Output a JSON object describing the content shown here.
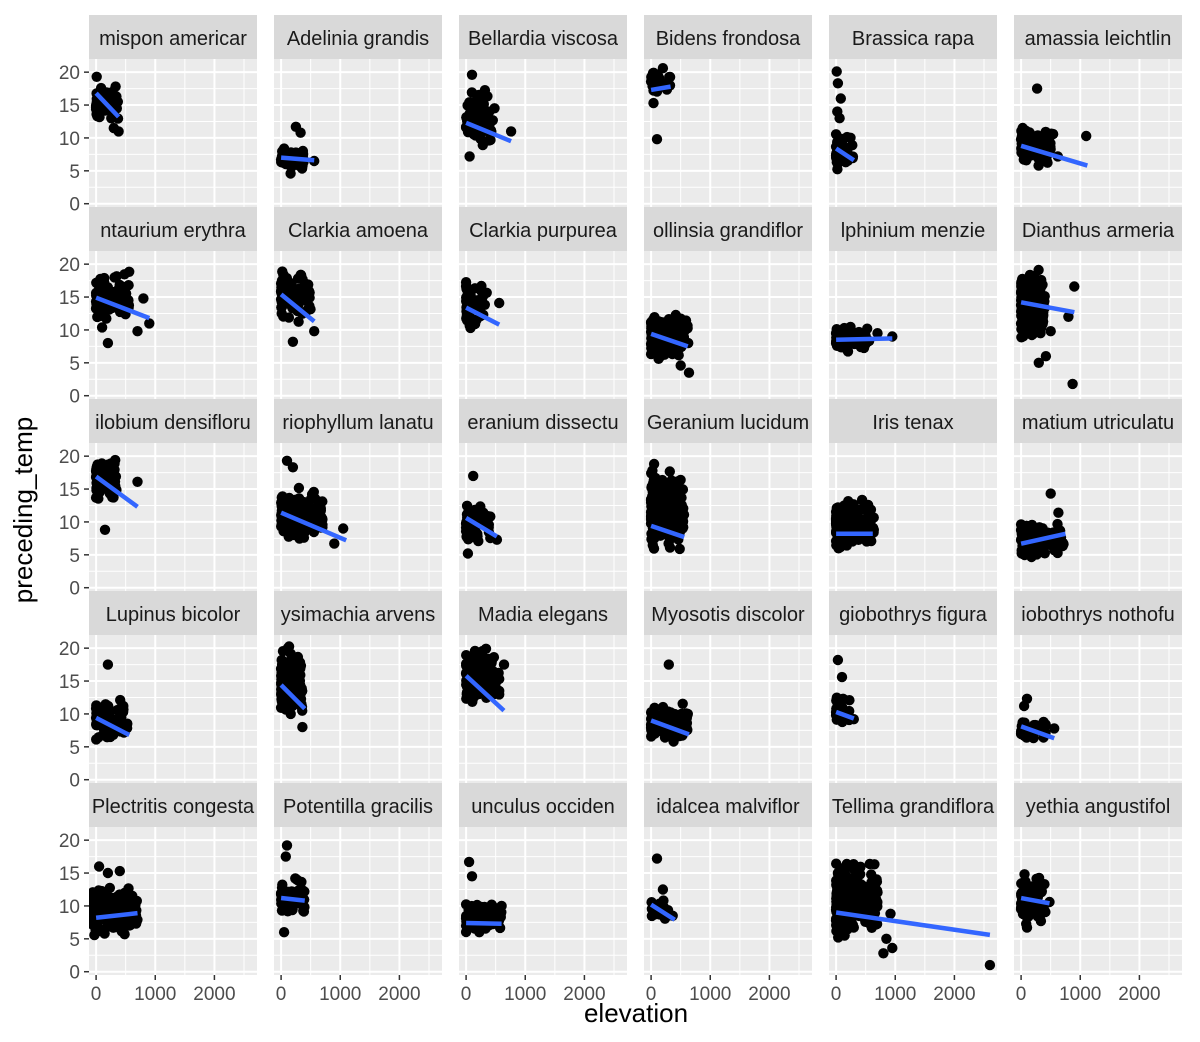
{
  "chart_data": {
    "type": "scatter",
    "xlabel": "elevation",
    "ylabel": "preceding_temp",
    "xlim": [
      -120,
      2720
    ],
    "ylim": [
      -0.5,
      22
    ],
    "x_ticks": [
      0,
      1000,
      2000
    ],
    "x_tick_labels": [
      "0",
      "1000",
      "2000"
    ],
    "y_ticks": [
      0,
      5,
      10,
      15,
      20
    ],
    "y_tick_labels": [
      "0",
      "5",
      "10",
      "15",
      "20"
    ],
    "grid": true,
    "legend": "none",
    "colors": {
      "panel_bg": "#EBEBEB",
      "strip_bg": "#D9D9D9",
      "grid": "#FFFFFF",
      "point": "#000000",
      "fit_line": "#3366FF",
      "axis_text": "#4D4D4D"
    },
    "facets": [
      {
        "label": "mispon americar",
        "fit": [
          0,
          16.8,
          380,
          13.2
        ],
        "points": {
          "xmin": 0,
          "xmax": 370,
          "ymin": 11,
          "ymax": 19.5,
          "n": 45,
          "extra": [
            [
              10,
              19.3
            ],
            [
              380,
              11
            ],
            [
              330,
              17.8
            ],
            [
              300,
              11.5
            ],
            [
              20,
              13.3
            ]
          ]
        }
      },
      {
        "label": "Adelinia grandis",
        "fit": [
          0,
          7.0,
          560,
          6.6
        ],
        "points": {
          "xmin": 0,
          "xmax": 400,
          "ymin": 4.8,
          "ymax": 9,
          "n": 55,
          "extra": [
            [
              250,
              11.7
            ],
            [
              330,
              10.8
            ],
            [
              560,
              6.5
            ],
            [
              160,
              4.6
            ]
          ]
        }
      },
      {
        "label": "Bellardia viscosa",
        "fit": [
          0,
          12.3,
          760,
          9.5
        ],
        "points": {
          "xmin": 0,
          "xmax": 460,
          "ymin": 7.5,
          "ymax": 18,
          "n": 95,
          "extra": [
            [
              100,
              19.6
            ],
            [
              760,
              11
            ],
            [
              480,
              14.5
            ],
            [
              60,
              7.2
            ]
          ]
        }
      },
      {
        "label": "Bidens frondosa",
        "fit": [
          0,
          17.3,
          330,
          17.8
        ],
        "points": {
          "xmin": 0,
          "xmax": 330,
          "ymin": 16.5,
          "ymax": 20.5,
          "n": 30,
          "extra": [
            [
              100,
              9.8
            ],
            [
              40,
              15.3
            ],
            [
              200,
              20.6
            ]
          ]
        }
      },
      {
        "label": "Brassica rapa",
        "fit": [
          0,
          8.4,
          300,
          6.6
        ],
        "points": {
          "xmin": 0,
          "xmax": 300,
          "ymin": 4.5,
          "ymax": 12,
          "n": 45,
          "extra": [
            [
              10,
              20.1
            ],
            [
              30,
              18.3
            ],
            [
              80,
              16
            ],
            [
              20,
              14
            ],
            [
              60,
              13
            ]
          ]
        }
      },
      {
        "label": "amassia leichtlin",
        "fit": [
          0,
          8.8,
          1120,
          5.8
        ],
        "points": {
          "xmin": 0,
          "xmax": 560,
          "ymin": 4.8,
          "ymax": 13,
          "n": 95,
          "extra": [
            [
              270,
              17.5
            ],
            [
              1100,
              10.3
            ],
            [
              620,
              7.2
            ]
          ]
        }
      },
      {
        "label": "ntaurium erythra",
        "fit": [
          0,
          14.9,
          900,
          11.8
        ],
        "points": {
          "xmin": 0,
          "xmax": 560,
          "ymin": 10,
          "ymax": 19.5,
          "n": 115,
          "extra": [
            [
              900,
              11
            ],
            [
              800,
              14.8
            ],
            [
              700,
              9.8
            ],
            [
              200,
              8
            ],
            [
              550,
              16.8
            ]
          ]
        }
      },
      {
        "label": "Clarkia amoena",
        "fit": [
          0,
          15.4,
          560,
          11.3
        ],
        "points": {
          "xmin": 0,
          "xmax": 500,
          "ymin": 10.5,
          "ymax": 20.3,
          "n": 95,
          "extra": [
            [
              560,
              9.8
            ],
            [
              200,
              8.2
            ]
          ]
        }
      },
      {
        "label": "Clarkia purpurea",
        "fit": [
          0,
          13.4,
          560,
          10.8
        ],
        "points": {
          "xmin": 0,
          "xmax": 350,
          "ymin": 8,
          "ymax": 19.5,
          "n": 55,
          "extra": [
            [
              560,
              14.1
            ]
          ]
        }
      },
      {
        "label": "ollinsia grandiflor",
        "fit": [
          0,
          9.4,
          620,
          7.5
        ],
        "points": {
          "xmin": 0,
          "xmax": 640,
          "ymin": 5,
          "ymax": 13.5,
          "n": 125,
          "extra": [
            [
              640,
              3.5
            ],
            [
              500,
              4.6
            ]
          ]
        }
      },
      {
        "label": "lphinium menzie",
        "fit": [
          0,
          8.5,
          950,
          8.7
        ],
        "points": {
          "xmin": 0,
          "xmax": 560,
          "ymin": 6.5,
          "ymax": 11,
          "n": 85,
          "extra": [
            [
              950,
              9
            ],
            [
              700,
              9.5
            ]
          ]
        }
      },
      {
        "label": "Dianthus armeria",
        "fit": [
          0,
          14.2,
          900,
          12.7
        ],
        "points": {
          "xmin": 0,
          "xmax": 400,
          "ymin": 7,
          "ymax": 20.2,
          "n": 155,
          "extra": [
            [
              900,
              16.6
            ],
            [
              870,
              1.8
            ],
            [
              300,
              5
            ],
            [
              420,
              6
            ],
            [
              500,
              9.8
            ],
            [
              800,
              12
            ]
          ]
        }
      },
      {
        "label": "ilobium densifloru",
        "fit": [
          0,
          16.9,
          700,
          12.3
        ],
        "points": {
          "xmin": 0,
          "xmax": 360,
          "ymin": 12.3,
          "ymax": 20.7,
          "n": 75,
          "extra": [
            [
              700,
              16.1
            ],
            [
              150,
              8.8
            ]
          ]
        }
      },
      {
        "label": "riophyllum lanatu",
        "fit": [
          0,
          11.4,
          1100,
          7.2
        ],
        "points": {
          "xmin": 0,
          "xmax": 700,
          "ymin": 6,
          "ymax": 16,
          "n": 165,
          "extra": [
            [
              1050,
              9
            ],
            [
              100,
              19.3
            ],
            [
              200,
              18.3
            ],
            [
              900,
              6.7
            ]
          ]
        }
      },
      {
        "label": "eranium dissectu",
        "fit": [
          0,
          10.6,
          520,
          7.8
        ],
        "points": {
          "xmin": 0,
          "xmax": 420,
          "ymin": 6,
          "ymax": 14,
          "n": 55,
          "extra": [
            [
              120,
              17
            ],
            [
              520,
              7.3
            ],
            [
              30,
              5.2
            ]
          ]
        }
      },
      {
        "label": "Geranium lucidum",
        "fit": [
          0,
          9.4,
          560,
          7.7
        ],
        "points": {
          "xmin": 0,
          "xmax": 560,
          "ymin": 4.8,
          "ymax": 19,
          "n": 260,
          "extra": [
            [
              50,
              18.8
            ]
          ]
        }
      },
      {
        "label": "Iris tenax",
        "fit": [
          0,
          8.2,
          620,
          8.2
        ],
        "points": {
          "xmin": 0,
          "xmax": 640,
          "ymin": 5.5,
          "ymax": 13.8,
          "n": 190,
          "extra": []
        }
      },
      {
        "label": "matium utriculatu",
        "fit": [
          0,
          6.7,
          750,
          8.2
        ],
        "points": {
          "xmin": 0,
          "xmax": 720,
          "ymin": 4,
          "ymax": 10.5,
          "n": 105,
          "extra": [
            [
              500,
              14.3
            ],
            [
              630,
              11.4
            ]
          ]
        }
      },
      {
        "label": "Lupinus bicolor",
        "fit": [
          0,
          9.4,
          560,
          6.8
        ],
        "points": {
          "xmin": 0,
          "xmax": 540,
          "ymin": 5.5,
          "ymax": 12.5,
          "n": 85,
          "extra": [
            [
              200,
              17.5
            ]
          ]
        }
      },
      {
        "label": "ysimachia arvens",
        "fit": [
          0,
          14.4,
          400,
          10.8
        ],
        "points": {
          "xmin": 0,
          "xmax": 360,
          "ymin": 7.8,
          "ymax": 21,
          "n": 135,
          "extra": [
            [
              360,
              8
            ]
          ]
        }
      },
      {
        "label": "Madia elegans",
        "fit": [
          0,
          15.8,
          640,
          10.5
        ],
        "points": {
          "xmin": 0,
          "xmax": 560,
          "ymin": 10.5,
          "ymax": 20.8,
          "n": 135,
          "extra": [
            [
              640,
              17.5
            ],
            [
              560,
              13.5
            ]
          ]
        }
      },
      {
        "label": "Myosotis discolor",
        "fit": [
          0,
          9.0,
          640,
          6.9
        ],
        "points": {
          "xmin": 0,
          "xmax": 620,
          "ymin": 5,
          "ymax": 12.3,
          "n": 105,
          "extra": [
            [
              300,
              17.5
            ],
            [
              620,
              10
            ]
          ]
        }
      },
      {
        "label": "giobothrys figura",
        "fit": [
          0,
          10.3,
          300,
          9.3
        ],
        "points": {
          "xmin": 0,
          "xmax": 260,
          "ymin": 8,
          "ymax": 13,
          "n": 30,
          "extra": [
            [
              30,
              18.2
            ],
            [
              100,
              15.6
            ],
            [
              300,
              9.2
            ]
          ]
        }
      },
      {
        "label": "iobothrys nothofu",
        "fit": [
          0,
          8.1,
          560,
          6.3
        ],
        "points": {
          "xmin": 0,
          "xmax": 500,
          "ymin": 5.3,
          "ymax": 10,
          "n": 30,
          "extra": [
            [
              100,
              12.3
            ],
            [
              50,
              11.2
            ],
            [
              560,
              7.8
            ]
          ]
        }
      },
      {
        "label": "Plectritis congesta",
        "fit": [
          0,
          8.2,
          700,
          8.9
        ],
        "points": {
          "xmin": -60,
          "xmax": 700,
          "ymin": 5,
          "ymax": 13.5,
          "n": 250,
          "extra": [
            [
              50,
              16
            ],
            [
              200,
              15
            ],
            [
              400,
              15.3
            ]
          ]
        }
      },
      {
        "label": "Potentilla gracilis",
        "fit": [
          0,
          11.2,
          400,
          10.8
        ],
        "points": {
          "xmin": 0,
          "xmax": 400,
          "ymin": 8,
          "ymax": 15,
          "n": 45,
          "extra": [
            [
              100,
              19.2
            ],
            [
              80,
              17.5
            ],
            [
              50,
              6
            ]
          ]
        }
      },
      {
        "label": "unculus occiden",
        "fit": [
          0,
          7.4,
          600,
          7.3
        ],
        "points": {
          "xmin": 0,
          "xmax": 600,
          "ymin": 5.5,
          "ymax": 11,
          "n": 115,
          "extra": [
            [
              50,
              16.7
            ],
            [
              100,
              14.5
            ],
            [
              600,
              10
            ]
          ]
        }
      },
      {
        "label": "idalcea malviflor",
        "fit": [
          0,
          10.2,
          400,
          7.9
        ],
        "points": {
          "xmin": 0,
          "xmax": 380,
          "ymin": 6.5,
          "ymax": 12.5,
          "n": 20,
          "extra": [
            [
              100,
              17.2
            ],
            [
              200,
              12.5
            ]
          ]
        }
      },
      {
        "label": "Tellima grandiflora",
        "fit": [
          0,
          9.0,
          2600,
          5.6
        ],
        "points": {
          "xmin": 0,
          "xmax": 700,
          "ymin": 4.5,
          "ymax": 17.5,
          "n": 280,
          "extra": [
            [
              2600,
              1
            ],
            [
              800,
              2.8
            ],
            [
              950,
              3.6
            ],
            [
              920,
              8.8
            ],
            [
              850,
              5
            ],
            [
              600,
              13.6
            ]
          ]
        }
      },
      {
        "label": "yethia angustifol",
        "fit": [
          0,
          11.2,
          480,
          10.4
        ],
        "points": {
          "xmin": 0,
          "xmax": 420,
          "ymin": 6.5,
          "ymax": 15.8,
          "n": 75,
          "extra": [
            [
              480,
              10.6
            ],
            [
              100,
              6.7
            ]
          ]
        }
      }
    ]
  }
}
